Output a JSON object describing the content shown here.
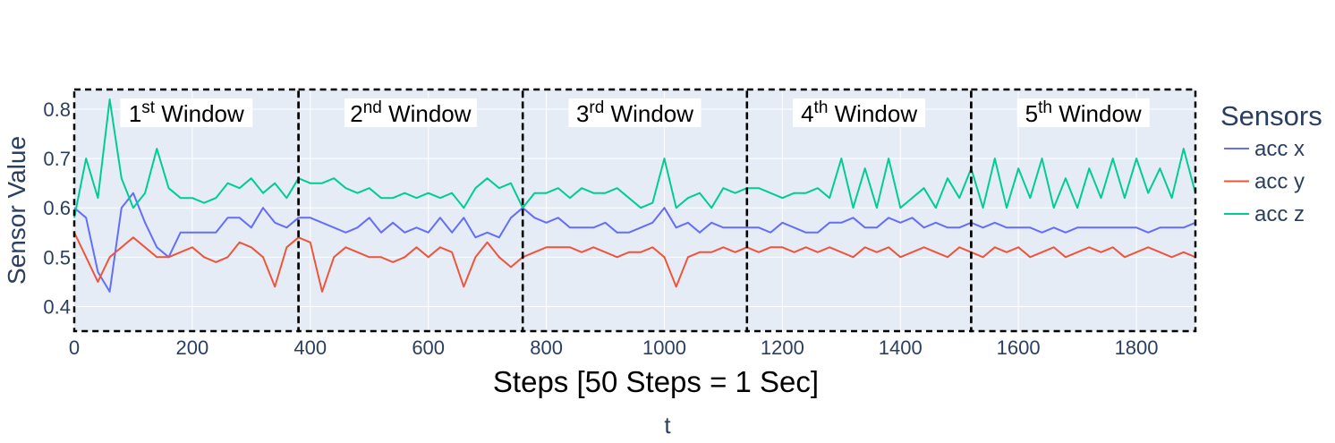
{
  "chart_data": {
    "type": "line",
    "xlabel": "Steps [50 Steps = 1 Sec]",
    "xlabel_sub": "t",
    "ylabel": "Sensor Value",
    "xlim": [
      0,
      1900
    ],
    "ylim": [
      0.35,
      0.84
    ],
    "x_ticks": [
      0,
      200,
      400,
      600,
      800,
      1000,
      1200,
      1400,
      1600,
      1800
    ],
    "y_ticks": [
      0.4,
      0.5,
      0.6,
      0.7,
      0.8
    ],
    "y_tick_labels": [
      "0.4",
      "0.5",
      "0.6",
      "0.7",
      "0.8"
    ],
    "grid": true,
    "legend": {
      "title": "Sensors",
      "position": "right"
    },
    "windows": [
      {
        "ordinal": "1",
        "suffix": "st",
        "label": "Window",
        "x_start": 0,
        "x_end": 380
      },
      {
        "ordinal": "2",
        "suffix": "nd",
        "label": "Window",
        "x_start": 380,
        "x_end": 760
      },
      {
        "ordinal": "3",
        "suffix": "rd",
        "label": "Window",
        "x_start": 760,
        "x_end": 1140
      },
      {
        "ordinal": "4",
        "suffix": "th",
        "label": "Window",
        "x_start": 1140,
        "x_end": 1520
      },
      {
        "ordinal": "5",
        "suffix": "th",
        "label": "Window",
        "x_start": 1520,
        "x_end": 1900
      }
    ],
    "series": [
      {
        "name": "acc x",
        "color": "#636efa",
        "x": [
          0,
          20,
          40,
          60,
          80,
          100,
          120,
          140,
          160,
          180,
          200,
          220,
          240,
          260,
          280,
          300,
          320,
          340,
          360,
          380,
          400,
          420,
          440,
          460,
          480,
          500,
          520,
          540,
          560,
          580,
          600,
          620,
          640,
          660,
          680,
          700,
          720,
          740,
          760,
          780,
          800,
          820,
          840,
          860,
          880,
          900,
          920,
          940,
          960,
          980,
          1000,
          1020,
          1040,
          1060,
          1080,
          1100,
          1120,
          1140,
          1160,
          1180,
          1200,
          1220,
          1240,
          1260,
          1280,
          1300,
          1320,
          1340,
          1360,
          1380,
          1400,
          1420,
          1440,
          1460,
          1480,
          1500,
          1520,
          1540,
          1560,
          1580,
          1600,
          1620,
          1640,
          1660,
          1680,
          1700,
          1720,
          1740,
          1760,
          1780,
          1800,
          1820,
          1840,
          1860,
          1880,
          1900
        ],
        "y": [
          0.6,
          0.58,
          0.47,
          0.43,
          0.6,
          0.63,
          0.57,
          0.52,
          0.5,
          0.55,
          0.55,
          0.55,
          0.55,
          0.58,
          0.58,
          0.56,
          0.6,
          0.57,
          0.56,
          0.58,
          0.58,
          0.57,
          0.56,
          0.55,
          0.56,
          0.58,
          0.55,
          0.57,
          0.55,
          0.56,
          0.55,
          0.58,
          0.55,
          0.58,
          0.54,
          0.55,
          0.54,
          0.58,
          0.6,
          0.58,
          0.57,
          0.58,
          0.56,
          0.56,
          0.56,
          0.57,
          0.55,
          0.55,
          0.56,
          0.57,
          0.6,
          0.56,
          0.57,
          0.55,
          0.57,
          0.56,
          0.56,
          0.56,
          0.56,
          0.55,
          0.57,
          0.56,
          0.55,
          0.55,
          0.57,
          0.57,
          0.58,
          0.56,
          0.56,
          0.58,
          0.57,
          0.58,
          0.56,
          0.57,
          0.56,
          0.56,
          0.57,
          0.56,
          0.57,
          0.56,
          0.56,
          0.56,
          0.55,
          0.56,
          0.55,
          0.56,
          0.56,
          0.56,
          0.56,
          0.56,
          0.56,
          0.55,
          0.56,
          0.56,
          0.56,
          0.57
        ]
      },
      {
        "name": "acc y",
        "color": "#ef553b",
        "x": [
          0,
          20,
          40,
          60,
          80,
          100,
          120,
          140,
          160,
          180,
          200,
          220,
          240,
          260,
          280,
          300,
          320,
          340,
          360,
          380,
          400,
          420,
          440,
          460,
          480,
          500,
          520,
          540,
          560,
          580,
          600,
          620,
          640,
          660,
          680,
          700,
          720,
          740,
          760,
          780,
          800,
          820,
          840,
          860,
          880,
          900,
          920,
          940,
          960,
          980,
          1000,
          1020,
          1040,
          1060,
          1080,
          1100,
          1120,
          1140,
          1160,
          1180,
          1200,
          1220,
          1240,
          1260,
          1280,
          1300,
          1320,
          1340,
          1360,
          1380,
          1400,
          1420,
          1440,
          1460,
          1480,
          1500,
          1520,
          1540,
          1560,
          1580,
          1600,
          1620,
          1640,
          1660,
          1680,
          1700,
          1720,
          1740,
          1760,
          1780,
          1800,
          1820,
          1840,
          1860,
          1880,
          1900
        ],
        "y": [
          0.55,
          0.5,
          0.45,
          0.5,
          0.52,
          0.54,
          0.52,
          0.5,
          0.5,
          0.51,
          0.52,
          0.5,
          0.49,
          0.5,
          0.53,
          0.52,
          0.5,
          0.44,
          0.52,
          0.54,
          0.53,
          0.43,
          0.5,
          0.52,
          0.51,
          0.5,
          0.5,
          0.49,
          0.5,
          0.52,
          0.5,
          0.52,
          0.51,
          0.44,
          0.5,
          0.53,
          0.5,
          0.48,
          0.5,
          0.51,
          0.52,
          0.52,
          0.52,
          0.51,
          0.52,
          0.51,
          0.5,
          0.51,
          0.51,
          0.52,
          0.5,
          0.44,
          0.5,
          0.51,
          0.51,
          0.52,
          0.51,
          0.52,
          0.51,
          0.52,
          0.52,
          0.51,
          0.52,
          0.51,
          0.52,
          0.51,
          0.5,
          0.52,
          0.51,
          0.52,
          0.5,
          0.51,
          0.52,
          0.51,
          0.5,
          0.52,
          0.51,
          0.5,
          0.52,
          0.51,
          0.52,
          0.5,
          0.51,
          0.52,
          0.5,
          0.51,
          0.52,
          0.51,
          0.52,
          0.5,
          0.51,
          0.52,
          0.51,
          0.5,
          0.51,
          0.5
        ]
      },
      {
        "name": "acc z",
        "color": "#00cc96",
        "x": [
          0,
          20,
          40,
          60,
          80,
          100,
          120,
          140,
          160,
          180,
          200,
          220,
          240,
          260,
          280,
          300,
          320,
          340,
          360,
          380,
          400,
          420,
          440,
          460,
          480,
          500,
          520,
          540,
          560,
          580,
          600,
          620,
          640,
          660,
          680,
          700,
          720,
          740,
          760,
          780,
          800,
          820,
          840,
          860,
          880,
          900,
          920,
          940,
          960,
          980,
          1000,
          1020,
          1040,
          1060,
          1080,
          1100,
          1120,
          1140,
          1160,
          1180,
          1200,
          1220,
          1240,
          1260,
          1280,
          1300,
          1320,
          1340,
          1360,
          1380,
          1400,
          1420,
          1440,
          1460,
          1480,
          1500,
          1520,
          1540,
          1560,
          1580,
          1600,
          1620,
          1640,
          1660,
          1680,
          1700,
          1720,
          1740,
          1760,
          1780,
          1800,
          1820,
          1840,
          1860,
          1880,
          1900
        ],
        "y": [
          0.58,
          0.7,
          0.62,
          0.82,
          0.66,
          0.6,
          0.63,
          0.72,
          0.64,
          0.62,
          0.62,
          0.61,
          0.62,
          0.65,
          0.64,
          0.66,
          0.63,
          0.65,
          0.62,
          0.66,
          0.65,
          0.65,
          0.66,
          0.64,
          0.63,
          0.64,
          0.62,
          0.62,
          0.63,
          0.62,
          0.63,
          0.62,
          0.63,
          0.6,
          0.64,
          0.66,
          0.64,
          0.65,
          0.6,
          0.63,
          0.63,
          0.64,
          0.62,
          0.64,
          0.63,
          0.63,
          0.64,
          0.62,
          0.6,
          0.61,
          0.7,
          0.6,
          0.62,
          0.63,
          0.6,
          0.64,
          0.63,
          0.64,
          0.64,
          0.63,
          0.62,
          0.63,
          0.63,
          0.64,
          0.62,
          0.7,
          0.6,
          0.68,
          0.6,
          0.7,
          0.6,
          0.62,
          0.64,
          0.6,
          0.66,
          0.62,
          0.68,
          0.6,
          0.7,
          0.6,
          0.68,
          0.62,
          0.7,
          0.6,
          0.66,
          0.6,
          0.68,
          0.62,
          0.7,
          0.62,
          0.7,
          0.63,
          0.68,
          0.62,
          0.72,
          0.63
        ]
      }
    ]
  }
}
